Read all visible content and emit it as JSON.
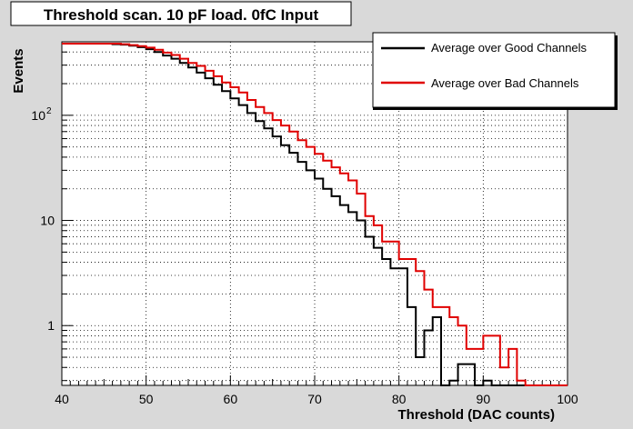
{
  "chart_data": {
    "type": "line",
    "style": "step",
    "title": "Threshold scan. 10 pF load. 0fC Input",
    "xlabel": "Threshold (DAC counts)",
    "ylabel": "Events",
    "xlim": [
      40,
      100
    ],
    "ylim": [
      0.27,
      500
    ],
    "yscale": "log",
    "grid": true,
    "legend_position": "top-right",
    "xticks": [
      40,
      50,
      60,
      70,
      80,
      90,
      100
    ],
    "xtick_labels": [
      "40",
      "50",
      "60",
      "70",
      "80",
      "90",
      "100"
    ],
    "yticks": [
      1,
      10,
      100
    ],
    "ytick_labels": [
      "1",
      "10",
      "10^2"
    ],
    "bin_width": 1,
    "series": [
      {
        "name": "Average over Good Channels",
        "color": "#000000",
        "bin_edges": [
          40,
          41,
          42,
          43,
          44,
          45,
          46,
          47,
          48,
          49,
          50,
          51,
          52,
          53,
          54,
          55,
          56,
          57,
          58,
          59,
          60,
          61,
          62,
          63,
          64,
          65,
          66,
          67,
          68,
          69,
          70,
          71,
          72,
          73,
          74,
          75,
          76,
          77,
          78,
          79,
          80,
          81,
          82,
          83,
          84,
          85,
          86,
          87,
          88,
          89,
          90,
          91,
          92,
          93,
          94,
          95,
          96,
          97,
          98,
          99,
          100
        ],
        "values": [
          480,
          480,
          480,
          480,
          480,
          480,
          475,
          470,
          460,
          445,
          425,
          400,
          370,
          345,
          315,
          285,
          255,
          225,
          195,
          170,
          145,
          125,
          105,
          88,
          75,
          63,
          52,
          44,
          36,
          30,
          25,
          20,
          17,
          14,
          12,
          10,
          7,
          5.5,
          4.3,
          3.5,
          3.5,
          1.5,
          0.5,
          0.9,
          1.2,
          0.27,
          0.3,
          0.43,
          0.43,
          0.27,
          0.3,
          0.27,
          0.27,
          0.27,
          0.27,
          0.27,
          0.27,
          0.27,
          0.27,
          0.27
        ]
      },
      {
        "name": "Average over Bad Channels",
        "color": "#e00000",
        "bin_edges": [
          40,
          41,
          42,
          43,
          44,
          45,
          46,
          47,
          48,
          49,
          50,
          51,
          52,
          53,
          54,
          55,
          56,
          57,
          58,
          59,
          60,
          61,
          62,
          63,
          64,
          65,
          66,
          67,
          68,
          69,
          70,
          71,
          72,
          73,
          74,
          75,
          76,
          77,
          78,
          79,
          80,
          81,
          82,
          83,
          84,
          85,
          86,
          87,
          88,
          89,
          90,
          91,
          92,
          93,
          94,
          95,
          96,
          97,
          98,
          99,
          100
        ],
        "values": [
          480,
          480,
          480,
          480,
          480,
          480,
          480,
          475,
          465,
          455,
          440,
          420,
          395,
          375,
          345,
          315,
          295,
          265,
          235,
          205,
          185,
          165,
          140,
          120,
          105,
          90,
          80,
          70,
          58,
          50,
          43,
          37,
          32,
          28,
          24,
          18,
          11,
          9,
          6.3,
          6.3,
          4.3,
          4.3,
          3.3,
          2.2,
          1.5,
          1.5,
          1.2,
          1.0,
          0.6,
          0.6,
          0.8,
          0.8,
          0.4,
          0.6,
          0.3,
          0.27,
          0.27,
          0.27,
          0.27,
          0.27
        ]
      }
    ]
  }
}
